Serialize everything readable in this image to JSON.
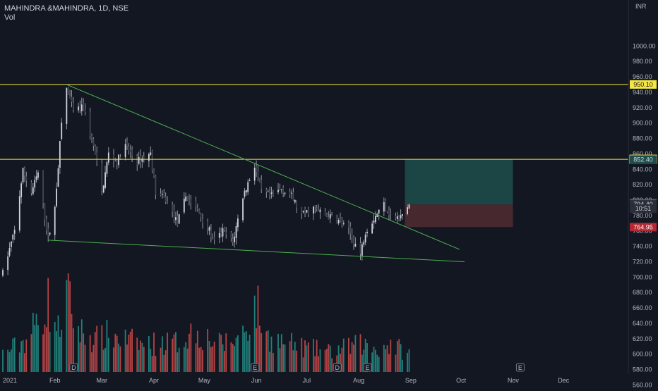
{
  "header": {
    "symbol": "MAHINDRA &MAHINDRA, 1D, NSE",
    "indicator": "Vol",
    "currency": "INR"
  },
  "colors": {
    "background": "#131722",
    "up": "#b2b5be",
    "volume_up": "#26a69a",
    "volume_down": "#ef5350",
    "trendline": "#4caf50",
    "resistance": "#f5e642",
    "target_zone": "#1f4d4c",
    "stop_zone": "#4e2a30"
  },
  "chart_data": {
    "type": "candlestick",
    "title": "MAHINDRA &MAHINDRA, 1D, NSE",
    "ylim": [
      550,
      1010
    ],
    "y_ticks": [
      560,
      580,
      600,
      620,
      640,
      660,
      680,
      700,
      720,
      740,
      760,
      780,
      800,
      820,
      840,
      860,
      880,
      900,
      920,
      940,
      960,
      980,
      1000
    ],
    "x_ticks": [
      "2021",
      "Feb",
      "Mar",
      "Apr",
      "May",
      "Jun",
      "Jul",
      "Aug",
      "Sep",
      "Oct",
      "Nov",
      "Dec"
    ],
    "price_path": [
      [
        "2021-01-01",
        705
      ],
      [
        "2021-01-08",
        760
      ],
      [
        "2021-01-13",
        838
      ],
      [
        "2021-01-18",
        810
      ],
      [
        "2021-01-22",
        835
      ],
      [
        "2021-01-28",
        750
      ],
      [
        "2021-02-01",
        790
      ],
      [
        "2021-02-05",
        900
      ],
      [
        "2021-02-08",
        945
      ],
      [
        "2021-02-12",
        915
      ],
      [
        "2021-02-18",
        920
      ],
      [
        "2021-02-24",
        870
      ],
      [
        "2021-03-01",
        810
      ],
      [
        "2021-03-05",
        860
      ],
      [
        "2021-03-10",
        850
      ],
      [
        "2021-03-15",
        870
      ],
      [
        "2021-03-22",
        850
      ],
      [
        "2021-03-30",
        860
      ],
      [
        "2021-04-02",
        810
      ],
      [
        "2021-04-08",
        800
      ],
      [
        "2021-04-15",
        770
      ],
      [
        "2021-04-20",
        805
      ],
      [
        "2021-04-26",
        790
      ],
      [
        "2021-05-03",
        765
      ],
      [
        "2021-05-07",
        745
      ],
      [
        "2021-05-12",
        760
      ],
      [
        "2021-05-18",
        745
      ],
      [
        "2021-05-24",
        805
      ],
      [
        "2021-05-31",
        845
      ],
      [
        "2021-06-04",
        810
      ],
      [
        "2021-06-10",
        805
      ],
      [
        "2021-06-16",
        815
      ],
      [
        "2021-06-22",
        805
      ],
      [
        "2021-06-28",
        780
      ],
      [
        "2021-07-05",
        790
      ],
      [
        "2021-07-12",
        780
      ],
      [
        "2021-07-19",
        775
      ],
      [
        "2021-07-26",
        760
      ],
      [
        "2021-08-02",
        730
      ],
      [
        "2021-08-05",
        760
      ],
      [
        "2021-08-11",
        780
      ],
      [
        "2021-08-16",
        795
      ],
      [
        "2021-08-20",
        780
      ],
      [
        "2021-08-25",
        775
      ],
      [
        "2021-08-31",
        794
      ]
    ],
    "volume_path": [
      [
        "2021-01-01",
        0.2
      ],
      [
        "2021-01-15",
        0.35
      ],
      [
        "2021-01-28",
        0.75
      ],
      [
        "2021-02-03",
        0.45
      ],
      [
        "2021-02-08",
        0.85
      ],
      [
        "2021-02-15",
        0.45
      ],
      [
        "2021-02-25",
        0.35
      ],
      [
        "2021-03-05",
        0.4
      ],
      [
        "2021-03-25",
        0.3
      ],
      [
        "2021-04-15",
        0.32
      ],
      [
        "2021-04-25",
        0.45
      ],
      [
        "2021-05-10",
        0.3
      ],
      [
        "2021-05-20",
        0.35
      ],
      [
        "2021-05-28",
        0.55
      ],
      [
        "2021-06-01",
        0.72
      ],
      [
        "2021-06-07",
        0.38
      ],
      [
        "2021-06-25",
        0.28
      ],
      [
        "2021-07-15",
        0.22
      ],
      [
        "2021-08-02",
        0.3
      ],
      [
        "2021-08-12",
        0.25
      ],
      [
        "2021-08-20",
        0.3
      ],
      [
        "2021-08-31",
        0.2
      ]
    ],
    "swing_labels": [
      {
        "date": "2021-02-08",
        "price": 950.1
      },
      {
        "date": "2021-02-01",
        "price": 748
      },
      {
        "date": "2021-05-12",
        "price": 735
      },
      {
        "date": "2021-08-02",
        "price": 727
      },
      {
        "date": "2021-05-31",
        "price": 852
      }
    ],
    "annotations": {
      "resistance_levels": [
        950.1,
        853.0
      ],
      "upper_trendline": [
        {
          "date": "2021-02-08",
          "price": 950
        },
        {
          "date": "2021-09-30",
          "price": 736
        }
      ],
      "lower_trendline": [
        {
          "date": "2021-01-28",
          "price": 748
        },
        {
          "date": "2021-10-03",
          "price": 720
        }
      ],
      "position": {
        "start": "2021-08-31",
        "end": "2021-10-31",
        "entry": 794.4,
        "target": 852.4,
        "stop": 764.95
      }
    },
    "price_tags": [
      {
        "label": "950.10",
        "price": 950.1,
        "style": "yellow"
      },
      {
        "label": "853.00",
        "price": 853.0,
        "style": "yellow-outline"
      },
      {
        "label": "852.40",
        "price": 852.4,
        "style": "teal"
      },
      {
        "label": "795.90",
        "price": 795.9,
        "style": "grey"
      },
      {
        "label": "794.40",
        "price": 794.4,
        "style": "dark"
      },
      {
        "label": "10:51",
        "price": 789.0,
        "style": "dark"
      },
      {
        "label": "764.95",
        "price": 764.95,
        "style": "red"
      }
    ],
    "events": [
      {
        "letter": "D",
        "date": "2021-02-12"
      },
      {
        "letter": "E",
        "date": "2021-05-31"
      },
      {
        "letter": "D",
        "date": "2021-07-19"
      },
      {
        "letter": "E",
        "date": "2021-08-06"
      },
      {
        "letter": "E",
        "date": "2021-11-05"
      }
    ]
  }
}
